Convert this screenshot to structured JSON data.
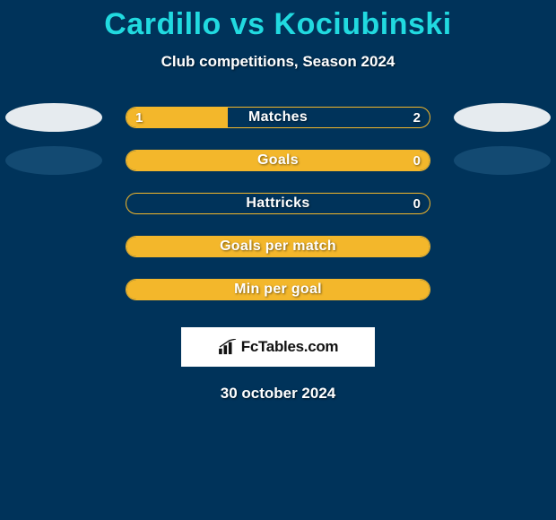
{
  "title": "Cardillo vs Kociubinski",
  "subtitle": "Club competitions, Season 2024",
  "bar_colors": {
    "border": "#f3b72b",
    "fill": "#f3b72b",
    "background": "#00335a"
  },
  "text_colors": {
    "title": "#21dae0",
    "body": "#ffffff"
  },
  "ellipse_colors": {
    "white": "rgba(255,255,255,0.9)",
    "dark": "#134a72"
  },
  "rows": [
    {
      "label": "Matches",
      "left_value": "1",
      "right_value": "2",
      "left_ratio": 0.333,
      "left_ellipse": "white",
      "right_ellipse": "white",
      "show_values": true,
      "full_fill": false
    },
    {
      "label": "Goals",
      "left_value": "",
      "right_value": "0",
      "left_ratio": 0,
      "left_ellipse": "dark",
      "right_ellipse": "dark",
      "show_values": true,
      "full_fill": true
    },
    {
      "label": "Hattricks",
      "left_value": "",
      "right_value": "0",
      "left_ratio": 0,
      "left_ellipse": null,
      "right_ellipse": null,
      "show_values": true,
      "full_fill": false
    },
    {
      "label": "Goals per match",
      "left_value": "",
      "right_value": "",
      "left_ratio": 0,
      "left_ellipse": null,
      "right_ellipse": null,
      "show_values": false,
      "full_fill": true
    },
    {
      "label": "Min per goal",
      "left_value": "",
      "right_value": "",
      "left_ratio": 0,
      "left_ellipse": null,
      "right_ellipse": null,
      "show_values": false,
      "full_fill": true
    }
  ],
  "logo": {
    "text": "FcTables.com"
  },
  "date": "30 october 2024"
}
